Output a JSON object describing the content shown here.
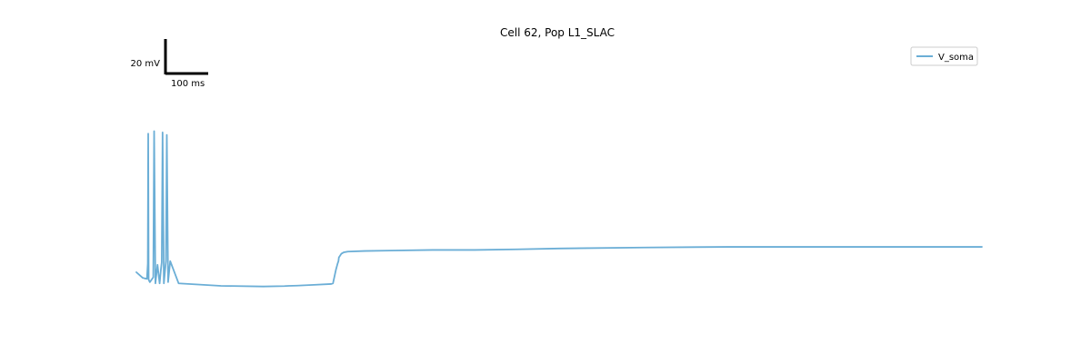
{
  "chart_data": {
    "type": "line",
    "title": "Cell 62, Pop L1_SLAC",
    "xlabel": "",
    "ylabel": "",
    "grid": false,
    "legend_placement": "top-right",
    "series": [
      {
        "name": "V_soma",
        "color": "#6baed6",
        "units": "mV",
        "x_units": "ms",
        "x": [
          0,
          15,
          20,
          25,
          27,
          28,
          29,
          32,
          40,
          42,
          45,
          48,
          50,
          55,
          58,
          60,
          62,
          65,
          68,
          70,
          72,
          75,
          80,
          100,
          200,
          300,
          350,
          360,
          380,
          420,
          460,
          465,
          472,
          476,
          478,
          479,
          480,
          482,
          485,
          490,
          500,
          540,
          600,
          700,
          800,
          900,
          1000,
          1200,
          1400,
          1600,
          1800,
          2000
        ],
        "y": [
          -72,
          -76.5,
          -77,
          -77.3,
          -65,
          40,
          -78,
          -80,
          -76,
          42,
          -81,
          -72,
          -66,
          -81,
          -70,
          -64,
          41,
          -81,
          -70,
          -63,
          39,
          -80,
          -63,
          -81,
          -83,
          -83.5,
          -83.2,
          -83,
          -82.8,
          -82.2,
          -81.5,
          -81,
          -70,
          -65,
          -63,
          -60,
          -59.5,
          -58.5,
          -57,
          -56,
          -55.3,
          -54.8,
          -54.5,
          -54,
          -54,
          -53.5,
          -52.8,
          -52,
          -51.5,
          -51.5,
          -51.5,
          -51.5
        ]
      }
    ],
    "scale_bar": {
      "x_label": "100 ms",
      "y_label": "20 mV",
      "x_length_ms": 100,
      "y_length_mV": 20
    },
    "xlim": [
      0,
      2000
    ],
    "ylim": [
      -105,
      82
    ]
  }
}
